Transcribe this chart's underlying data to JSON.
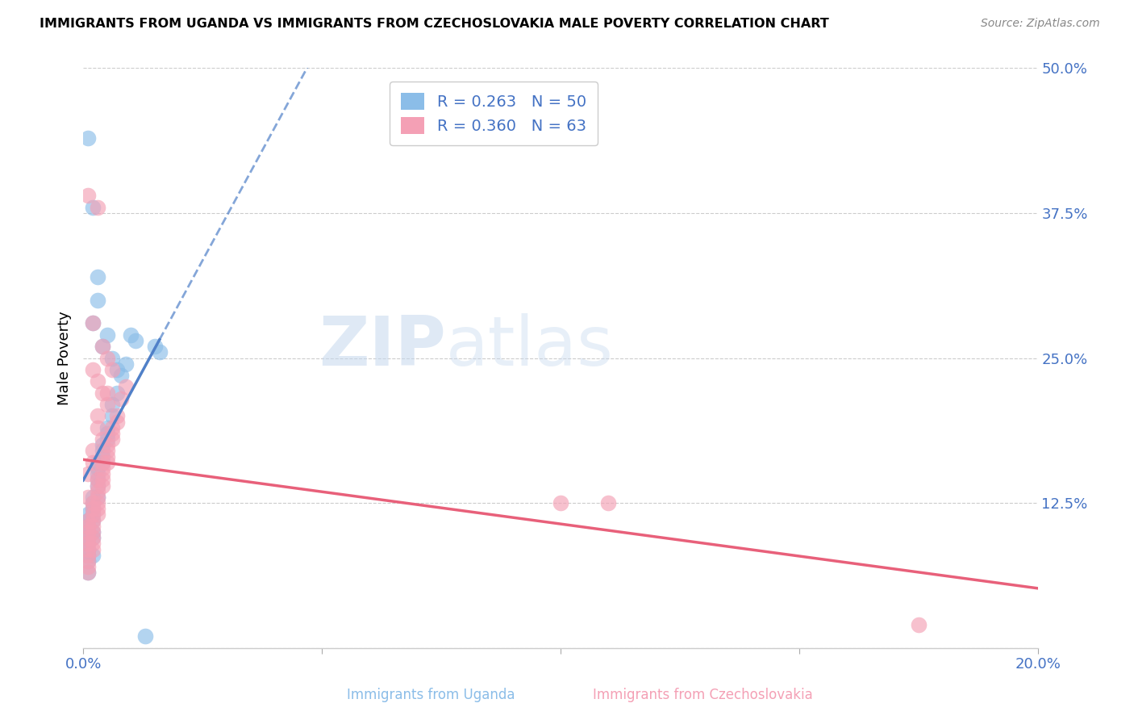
{
  "title": "IMMIGRANTS FROM UGANDA VS IMMIGRANTS FROM CZECHOSLOVAKIA MALE POVERTY CORRELATION CHART",
  "source": "Source: ZipAtlas.com",
  "xlabel_uganda": "Immigrants from Uganda",
  "xlabel_czechoslovakia": "Immigrants from Czechoslovakia",
  "ylabel": "Male Poverty",
  "xlim": [
    0.0,
    0.2
  ],
  "ylim": [
    0.0,
    0.5
  ],
  "yticks": [
    0.0,
    0.125,
    0.25,
    0.375,
    0.5
  ],
  "ytick_labels": [
    "",
    "12.5%",
    "25.0%",
    "37.5%",
    "50.0%"
  ],
  "xticks": [
    0.0,
    0.05,
    0.1,
    0.15,
    0.2
  ],
  "xtick_labels": [
    "0.0%",
    "",
    "",
    "",
    "20.0%"
  ],
  "legend_uganda_R": "R = 0.263",
  "legend_uganda_N": "N = 50",
  "legend_czechoslovakia_R": "R = 0.360",
  "legend_czechoslovakia_N": "N = 63",
  "color_uganda": "#8BBDE8",
  "color_czechoslovakia": "#F4A0B5",
  "trendline_uganda_color": "#5080C8",
  "trendline_czechoslovakia_color": "#E8607A",
  "watermark": "ZIPatlas",
  "uganda_x": [
    0.001,
    0.001,
    0.001,
    0.001,
    0.001,
    0.001,
    0.001,
    0.001,
    0.001,
    0.001,
    0.002,
    0.002,
    0.002,
    0.002,
    0.002,
    0.002,
    0.002,
    0.002,
    0.003,
    0.003,
    0.003,
    0.003,
    0.003,
    0.003,
    0.004,
    0.004,
    0.004,
    0.004,
    0.005,
    0.005,
    0.005,
    0.006,
    0.006,
    0.007,
    0.008,
    0.009,
    0.01,
    0.011,
    0.015,
    0.016,
    0.001,
    0.002,
    0.002,
    0.003,
    0.003,
    0.004,
    0.005,
    0.006,
    0.007,
    0.013
  ],
  "uganda_y": [
    0.105,
    0.11,
    0.115,
    0.1,
    0.095,
    0.09,
    0.085,
    0.08,
    0.075,
    0.065,
    0.13,
    0.125,
    0.12,
    0.115,
    0.11,
    0.1,
    0.095,
    0.08,
    0.16,
    0.155,
    0.15,
    0.145,
    0.14,
    0.13,
    0.175,
    0.17,
    0.165,
    0.16,
    0.19,
    0.185,
    0.18,
    0.21,
    0.2,
    0.22,
    0.235,
    0.245,
    0.27,
    0.265,
    0.26,
    0.255,
    0.44,
    0.38,
    0.28,
    0.3,
    0.32,
    0.26,
    0.27,
    0.25,
    0.24,
    0.01
  ],
  "czechoslovakia_x": [
    0.001,
    0.001,
    0.001,
    0.001,
    0.001,
    0.001,
    0.001,
    0.001,
    0.001,
    0.001,
    0.002,
    0.002,
    0.002,
    0.002,
    0.002,
    0.002,
    0.002,
    0.002,
    0.002,
    0.003,
    0.003,
    0.003,
    0.003,
    0.003,
    0.003,
    0.003,
    0.004,
    0.004,
    0.004,
    0.004,
    0.004,
    0.005,
    0.005,
    0.005,
    0.005,
    0.006,
    0.006,
    0.006,
    0.007,
    0.007,
    0.008,
    0.009,
    0.1,
    0.11,
    0.001,
    0.002,
    0.002,
    0.003,
    0.003,
    0.004,
    0.004,
    0.005,
    0.005,
    0.006,
    0.001,
    0.002,
    0.003,
    0.004,
    0.005,
    0.003,
    0.002,
    0.001,
    0.175
  ],
  "czechoslovakia_y": [
    0.1,
    0.105,
    0.11,
    0.095,
    0.09,
    0.085,
    0.08,
    0.075,
    0.07,
    0.065,
    0.125,
    0.12,
    0.115,
    0.11,
    0.105,
    0.1,
    0.095,
    0.09,
    0.085,
    0.145,
    0.14,
    0.135,
    0.13,
    0.125,
    0.12,
    0.115,
    0.16,
    0.155,
    0.15,
    0.145,
    0.14,
    0.175,
    0.17,
    0.165,
    0.16,
    0.19,
    0.185,
    0.18,
    0.2,
    0.195,
    0.215,
    0.225,
    0.125,
    0.125,
    0.39,
    0.28,
    0.24,
    0.38,
    0.23,
    0.26,
    0.22,
    0.25,
    0.21,
    0.24,
    0.13,
    0.17,
    0.2,
    0.18,
    0.22,
    0.19,
    0.16,
    0.15,
    0.02
  ]
}
